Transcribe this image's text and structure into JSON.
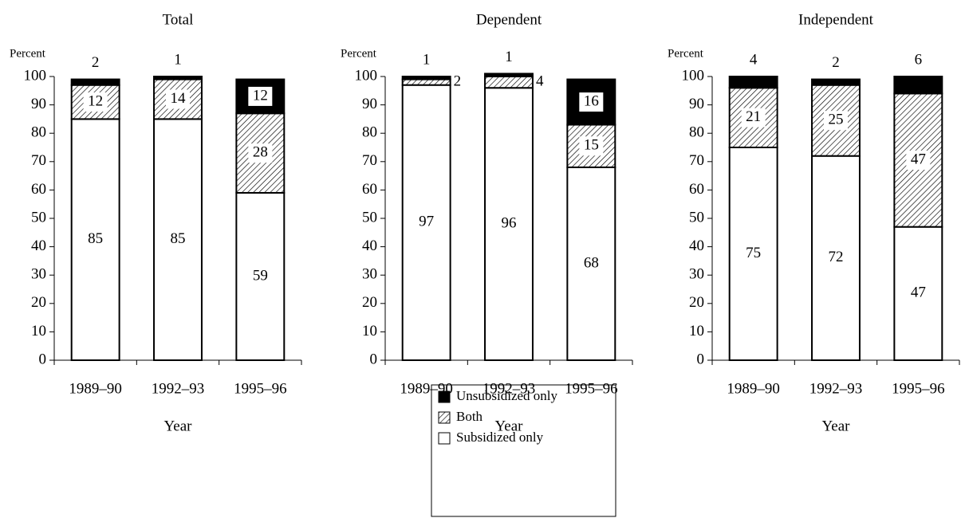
{
  "chart_data": [
    {
      "type": "bar",
      "stacked": true,
      "title": "Total",
      "ylabel": "Percent",
      "xlabel": "Year",
      "categories": [
        "1989–90",
        "1992–93",
        "1995–96"
      ],
      "series": [
        {
          "name": "Subsidized only",
          "color": "#ffffff",
          "values": [
            85,
            85,
            59
          ]
        },
        {
          "name": "Both",
          "color": "#ffffff",
          "pattern": "diagonal-hatch",
          "values": [
            12,
            14,
            28
          ]
        },
        {
          "name": "Unsubsidized only",
          "color": "#000000",
          "values": [
            2,
            1,
            12
          ]
        }
      ],
      "ylim": [
        0,
        100
      ],
      "yticks": [
        0,
        10,
        20,
        30,
        40,
        50,
        60,
        70,
        80,
        90,
        100
      ]
    },
    {
      "type": "bar",
      "stacked": true,
      "title": "Dependent",
      "ylabel": "Percent",
      "xlabel": "Year",
      "categories": [
        "1989–90",
        "1992–93",
        "1995–96"
      ],
      "series": [
        {
          "name": "Subsidized only",
          "color": "#ffffff",
          "values": [
            97,
            96,
            68
          ]
        },
        {
          "name": "Both",
          "color": "#ffffff",
          "pattern": "diagonal-hatch",
          "values": [
            2,
            4,
            15
          ]
        },
        {
          "name": "Unsubsidized only",
          "color": "#000000",
          "values": [
            1,
            1,
            16
          ]
        }
      ],
      "ylim": [
        0,
        100
      ],
      "yticks": [
        0,
        10,
        20,
        30,
        40,
        50,
        60,
        70,
        80,
        90,
        100
      ]
    },
    {
      "type": "bar",
      "stacked": true,
      "title": "Independent",
      "ylabel": "Percent",
      "xlabel": "Year",
      "categories": [
        "1989–90",
        "1992–93",
        "1995–96"
      ],
      "series": [
        {
          "name": "Subsidized only",
          "color": "#ffffff",
          "values": [
            75,
            72,
            47
          ]
        },
        {
          "name": "Both",
          "color": "#ffffff",
          "pattern": "diagonal-hatch",
          "values": [
            21,
            25,
            47
          ]
        },
        {
          "name": "Unsubsidized only",
          "color": "#000000",
          "values": [
            4,
            2,
            6
          ]
        }
      ],
      "ylim": [
        0,
        100
      ],
      "yticks": [
        0,
        10,
        20,
        30,
        40,
        50,
        60,
        70,
        80,
        90,
        100
      ]
    }
  ]
}
